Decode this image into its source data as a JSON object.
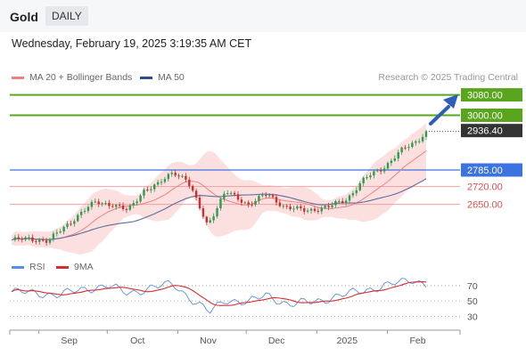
{
  "header": {
    "title": "Gold",
    "timeframe": "DAILY"
  },
  "datetime": "Wednesday, February 19, 2025 3:19:35 AM CET",
  "legend": {
    "ma20_label": "MA 20 + Bollinger Bands",
    "ma50_label": "MA 50"
  },
  "credit": "Research © 2025 Trading Central",
  "rsi_legend": {
    "rsi_label": "RSI",
    "ma_label": "9MA"
  },
  "colors": {
    "green": "#5aa51e",
    "blue": "#3b73e0",
    "red": "#d9534f",
    "dark": "#333333",
    "up": "#2e9a52",
    "down": "#cc2e2e",
    "ma20": "#f08080",
    "ma50": "#5b6f99",
    "band": "#fbd6d6",
    "rsi": "#5b8ee6",
    "rsi_ma": "#d32f2f"
  },
  "chart_data": {
    "type": "candlestick",
    "x_ticks": [
      "Sep",
      "Oct",
      "Nov",
      "Dec",
      "2025",
      "Feb"
    ],
    "price_range": [
      2460,
      3110
    ],
    "levels": [
      {
        "value": 3080.0,
        "label": "3080.00",
        "style": "green-fill"
      },
      {
        "value": 3000.0,
        "label": "3000.00",
        "style": "green-fill"
      },
      {
        "value": 2936.4,
        "label": "2936.40",
        "style": "dark-fill"
      },
      {
        "value": 2785.0,
        "label": "2785.00",
        "style": "blue-fill"
      },
      {
        "value": 2720.0,
        "label": "2720.00",
        "style": "red-text"
      },
      {
        "value": 2650.0,
        "label": "2650.00",
        "style": "red-text"
      }
    ],
    "close_path": [
      [
        "2024-08-20",
        2510
      ],
      [
        "2024-08-28",
        2515
      ],
      [
        "2024-09-05",
        2505
      ],
      [
        "2024-09-12",
        2560
      ],
      [
        "2024-09-20",
        2620
      ],
      [
        "2024-09-26",
        2660
      ],
      [
        "2024-10-03",
        2650
      ],
      [
        "2024-10-10",
        2625
      ],
      [
        "2024-10-17",
        2705
      ],
      [
        "2024-10-23",
        2725
      ],
      [
        "2024-10-30",
        2780
      ],
      [
        "2024-11-05",
        2745
      ],
      [
        "2024-11-14",
        2570
      ],
      [
        "2024-11-22",
        2700
      ],
      [
        "2024-12-02",
        2650
      ],
      [
        "2024-12-10",
        2690
      ],
      [
        "2024-12-18",
        2640
      ],
      [
        "2024-12-27",
        2625
      ],
      [
        "2025-01-06",
        2640
      ],
      [
        "2025-01-14",
        2670
      ],
      [
        "2025-01-22",
        2750
      ],
      [
        "2025-01-31",
        2800
      ],
      [
        "2025-02-07",
        2860
      ],
      [
        "2025-02-14",
        2900
      ],
      [
        "2025-02-18",
        2936.4
      ]
    ],
    "rsi": {
      "levels": [
        70,
        50,
        30
      ],
      "range": [
        20,
        85
      ],
      "path": [
        [
          "2024-08-20",
          62
        ],
        [
          "2024-09-01",
          60
        ],
        [
          "2024-09-10",
          58
        ],
        [
          "2024-09-20",
          65
        ],
        [
          "2024-10-01",
          70
        ],
        [
          "2024-10-10",
          60
        ],
        [
          "2024-10-20",
          67
        ],
        [
          "2024-10-30",
          72
        ],
        [
          "2024-11-08",
          50
        ],
        [
          "2024-11-15",
          35
        ],
        [
          "2024-11-22",
          52
        ],
        [
          "2024-12-02",
          48
        ],
        [
          "2024-12-10",
          58
        ],
        [
          "2024-12-20",
          45
        ],
        [
          "2025-01-01",
          50
        ],
        [
          "2025-01-10",
          56
        ],
        [
          "2025-01-22",
          64
        ],
        [
          "2025-01-31",
          70
        ],
        [
          "2025-02-07",
          74
        ],
        [
          "2025-02-12",
          78
        ],
        [
          "2025-02-18",
          72
        ]
      ]
    }
  }
}
